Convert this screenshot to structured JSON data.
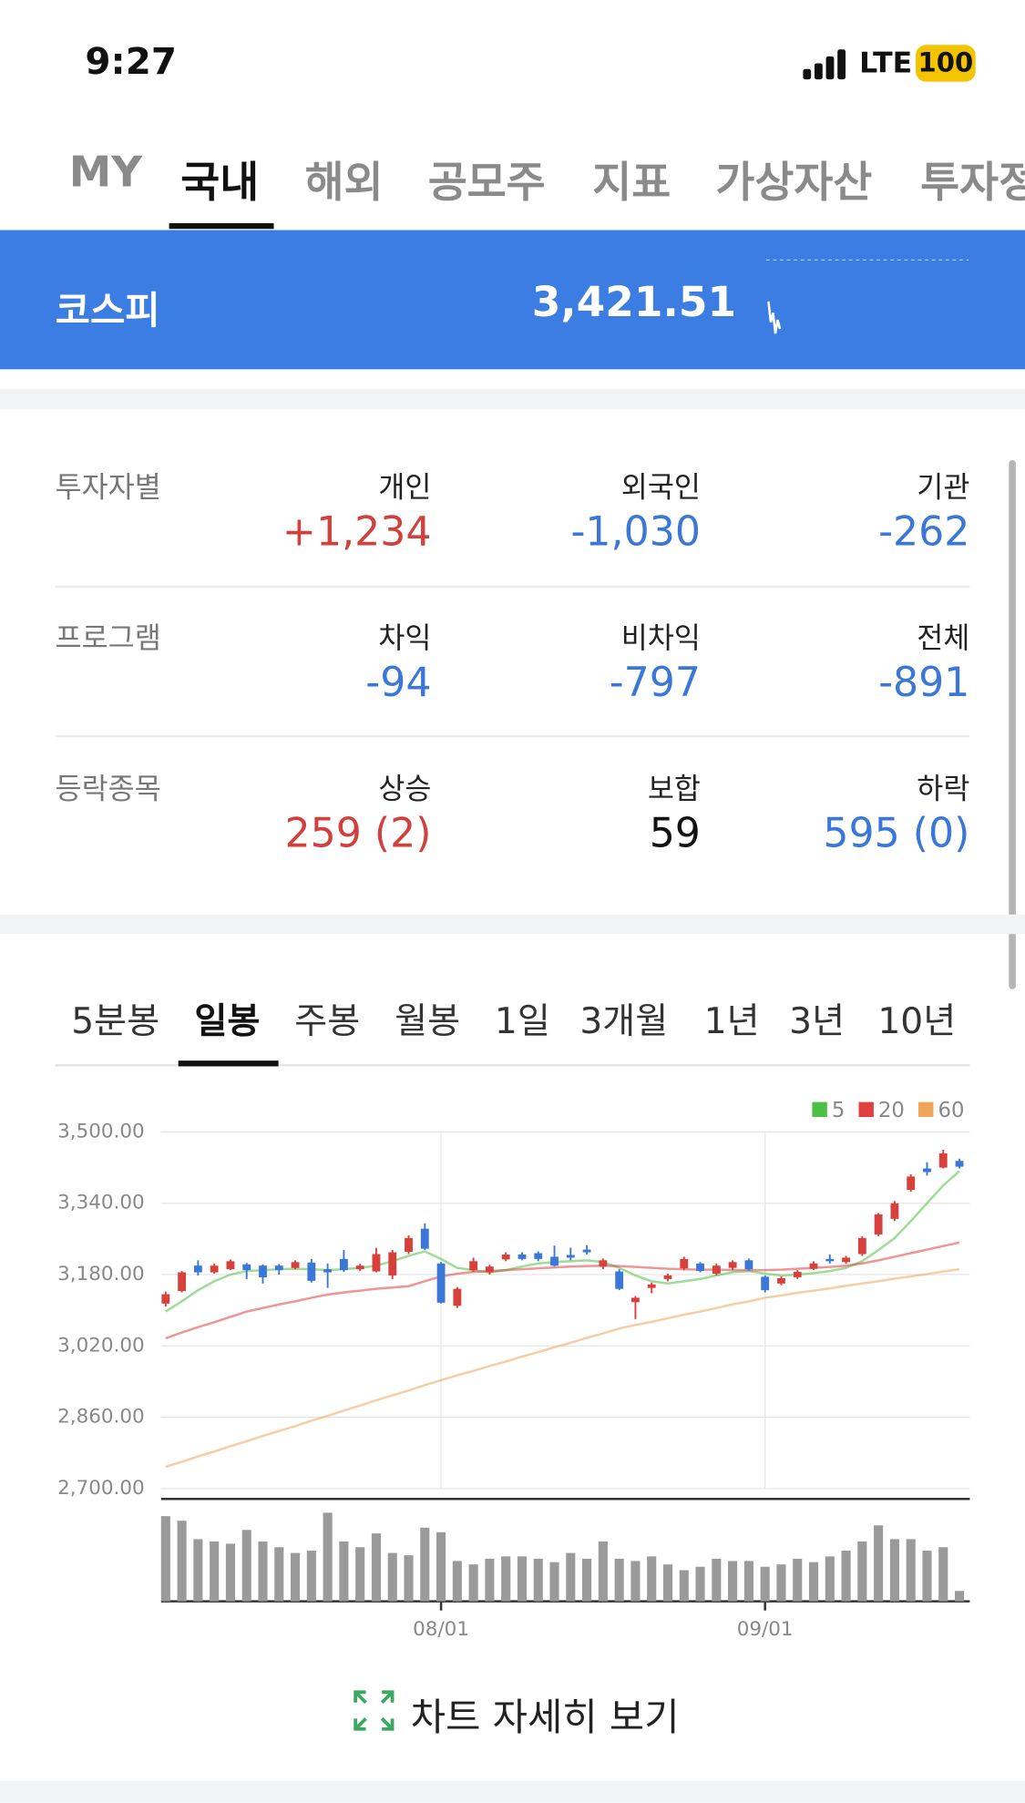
{
  "status_bar": {
    "time": "9:27",
    "network": "LTE",
    "battery": "100"
  },
  "tabs": [
    "MY",
    "국내",
    "해외",
    "공모주",
    "지표",
    "가상자산",
    "투자정보"
  ],
  "index_banner": {
    "name": "코스피",
    "value": "3,421.51"
  },
  "investors": {
    "rows": [
      {
        "label": "투자자별",
        "cells": [
          {
            "name": "개인",
            "value": "+1,234"
          },
          {
            "name": "외국인",
            "value": "-1,030"
          },
          {
            "name": "기관",
            "value": "-262"
          }
        ]
      },
      {
        "label": "프로그램",
        "cells": [
          {
            "name": "차익",
            "value": "-94"
          },
          {
            "name": "비차익",
            "value": "-797"
          },
          {
            "name": "전체",
            "value": "-891"
          }
        ]
      },
      {
        "label": "등락종목",
        "cells": [
          {
            "name": "상승",
            "value": "259 (2)"
          },
          {
            "name": "보합",
            "value": "59"
          },
          {
            "name": "하락",
            "value": "595 (0)"
          }
        ]
      }
    ]
  },
  "period_tabs": [
    "5분봉",
    "일봉",
    "주봉",
    "월봉",
    "1일",
    "3개월",
    "1년",
    "3년",
    "10년"
  ],
  "chart_data": {
    "type": "candlestick",
    "categories": [
      null,
      null,
      null,
      null,
      null,
      null,
      null,
      null,
      null,
      null,
      null,
      null,
      null,
      null,
      null,
      null,
      null,
      "08/01",
      null,
      null,
      null,
      null,
      null,
      null,
      null,
      null,
      null,
      null,
      null,
      null,
      null,
      null,
      null,
      null,
      null,
      null,
      null,
      "09/01",
      null,
      null,
      null,
      null,
      null,
      null,
      null,
      null,
      null,
      null,
      null,
      null
    ],
    "open": [
      3115,
      3143,
      3200,
      3185,
      3192,
      3203,
      3200,
      3200,
      3195,
      3207,
      3192,
      3215,
      3192,
      3187,
      3178,
      3231,
      3283,
      3205,
      3110,
      3190,
      3185,
      3214,
      3225,
      3228,
      3220,
      3224,
      3236,
      3198,
      3187,
      3118,
      3150,
      3170,
      3194,
      3205,
      3182,
      3195,
      3212,
      3175,
      3160,
      3174,
      3193,
      3215,
      3208,
      3226,
      3270,
      3305,
      3370,
      3418,
      3420,
      3435
    ],
    "high": [
      3142,
      3188,
      3212,
      3205,
      3214,
      3206,
      3203,
      3204,
      3212,
      3215,
      3205,
      3235,
      3204,
      3240,
      3235,
      3268,
      3295,
      3208,
      3152,
      3218,
      3202,
      3230,
      3230,
      3232,
      3245,
      3240,
      3246,
      3216,
      3192,
      3132,
      3162,
      3182,
      3220,
      3208,
      3205,
      3212,
      3216,
      3178,
      3176,
      3190,
      3210,
      3225,
      3222,
      3266,
      3318,
      3345,
      3405,
      3432,
      3460,
      3440
    ],
    "low": [
      3108,
      3140,
      3178,
      3182,
      3190,
      3170,
      3160,
      3180,
      3192,
      3162,
      3150,
      3186,
      3188,
      3185,
      3170,
      3226,
      3235,
      3115,
      3105,
      3186,
      3180,
      3210,
      3212,
      3210,
      3198,
      3212,
      3225,
      3192,
      3145,
      3080,
      3138,
      3165,
      3190,
      3185,
      3178,
      3190,
      3188,
      3140,
      3156,
      3170,
      3190,
      3205,
      3204,
      3222,
      3266,
      3300,
      3366,
      3402,
      3418,
      3418
    ],
    "close": [
      3136,
      3185,
      3185,
      3200,
      3210,
      3190,
      3174,
      3190,
      3208,
      3166,
      3185,
      3190,
      3200,
      3226,
      3230,
      3262,
      3238,
      3117,
      3148,
      3210,
      3198,
      3225,
      3215,
      3215,
      3200,
      3218,
      3230,
      3212,
      3148,
      3128,
      3158,
      3178,
      3215,
      3188,
      3200,
      3208,
      3192,
      3145,
      3172,
      3186,
      3205,
      3210,
      3218,
      3262,
      3315,
      3340,
      3400,
      3410,
      3452,
      3422
    ],
    "up_color": "#d8403c",
    "down_color": "#3b77d6",
    "series": [
      {
        "name": "5",
        "color": "#4cbf45",
        "values": [
          3097,
          3120,
          3145,
          3165,
          3180,
          3188,
          3190,
          3192,
          3193,
          3192,
          3190,
          3192,
          3195,
          3200,
          3210,
          3222,
          3232,
          3215,
          3195,
          3190,
          3185,
          3190,
          3198,
          3205,
          3208,
          3210,
          3212,
          3208,
          3195,
          3178,
          3165,
          3160,
          3165,
          3170,
          3178,
          3185,
          3188,
          3182,
          3178,
          3180,
          3183,
          3188,
          3195,
          3210,
          3235,
          3262,
          3300,
          3340,
          3380,
          3412
        ]
      },
      {
        "name": "20",
        "color": "#e04040",
        "values": [
          3037,
          3050,
          3062,
          3073,
          3085,
          3097,
          3105,
          3113,
          3120,
          3128,
          3135,
          3140,
          3144,
          3148,
          3151,
          3154,
          3165,
          3176,
          3182,
          3186,
          3188,
          3190,
          3192,
          3194,
          3196,
          3198,
          3199,
          3200,
          3199,
          3197,
          3195,
          3193,
          3192,
          3191,
          3191,
          3190,
          3190,
          3190,
          3191,
          3193,
          3195,
          3197,
          3200,
          3205,
          3212,
          3220,
          3228,
          3236,
          3244,
          3252
        ]
      },
      {
        "name": "60",
        "color": "#f0a55a",
        "values": [
          2749,
          2760,
          2772,
          2783,
          2795,
          2806,
          2818,
          2829,
          2840,
          2852,
          2863,
          2875,
          2886,
          2898,
          2909,
          2920,
          2932,
          2943,
          2954,
          2964,
          2975,
          2985,
          2996,
          3006,
          3017,
          3027,
          3038,
          3048,
          3059,
          3067,
          3074,
          3082,
          3090,
          3097,
          3105,
          3113,
          3120,
          3128,
          3133,
          3139,
          3144,
          3149,
          3155,
          3160,
          3165,
          3171,
          3176,
          3181,
          3187,
          3192
        ]
      }
    ],
    "volume": [
      74,
      70,
      54,
      52,
      50,
      62,
      52,
      47,
      42,
      44,
      77,
      52,
      47,
      59,
      42,
      40,
      64,
      60,
      35,
      32,
      37,
      39,
      39,
      37,
      34,
      42,
      37,
      52,
      37,
      35,
      39,
      32,
      27,
      30,
      37,
      35,
      35,
      30,
      32,
      37,
      34,
      39,
      44,
      52,
      66,
      54,
      54,
      44,
      47,
      9
    ],
    "volume_color": "#9a9a9a",
    "volume_lim": [
      0,
      80
    ],
    "ylim": [
      2700,
      3500
    ],
    "yticks": [
      {
        "value": 3500,
        "label": "3,500.00"
      },
      {
        "value": 3340,
        "label": "3,340.00"
      },
      {
        "value": 3180,
        "label": "3,180.00"
      },
      {
        "value": 3020,
        "label": "3,020.00"
      },
      {
        "value": 2860,
        "label": "2,860.00"
      },
      {
        "value": 2700,
        "label": "2,700.00"
      }
    ],
    "grid": true
  },
  "detail_button": "차트 자세히 보기"
}
